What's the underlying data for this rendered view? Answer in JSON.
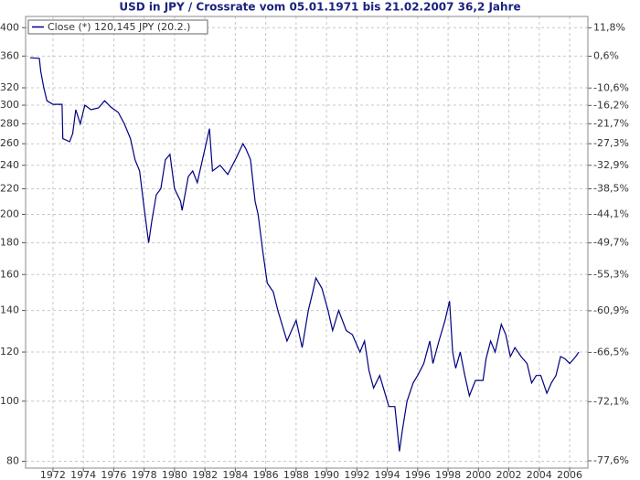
{
  "chart_data": {
    "type": "line",
    "title": "USD in JPY / Crossrate vom 05.01.1971 bis 21.02.2007 36,2 Jahre",
    "yscale": "log",
    "y2scale": "log-growth",
    "grid": true,
    "legend": "top-left",
    "xlim": [
      1970.7,
      2007.7
    ],
    "xticks": [
      {
        "value": 1972.5,
        "label": "1972"
      },
      {
        "value": 1974.5,
        "label": "1974"
      },
      {
        "value": 1976.5,
        "label": "1976"
      },
      {
        "value": 1978.5,
        "label": "1978"
      },
      {
        "value": 1980.5,
        "label": "1980"
      },
      {
        "value": 1982.5,
        "label": "1982"
      },
      {
        "value": 1984.5,
        "label": "1984"
      },
      {
        "value": 1986.5,
        "label": "1986"
      },
      {
        "value": 1988.5,
        "label": "1988"
      },
      {
        "value": 1990.5,
        "label": "1990"
      },
      {
        "value": 1992.5,
        "label": "1992"
      },
      {
        "value": 1994.5,
        "label": "1994"
      },
      {
        "value": 1996.5,
        "label": "1996"
      },
      {
        "value": 1998.5,
        "label": "1998"
      },
      {
        "value": 2000.5,
        "label": "2000"
      },
      {
        "value": 2002.5,
        "label": "2002"
      },
      {
        "value": 2004.5,
        "label": "2004"
      },
      {
        "value": 2006.5,
        "label": "2006"
      }
    ],
    "ylim": [
      78,
      417
    ],
    "yticks": [
      80,
      100,
      120,
      140,
      160,
      180,
      200,
      220,
      240,
      260,
      280,
      300,
      320,
      360,
      400
    ],
    "y2lim": [
      -78.2,
      16.6
    ],
    "y2ticks": [
      {
        "value": 11.8,
        "label": "11,8%"
      },
      {
        "value": 0.6,
        "label": "0,6%"
      },
      {
        "value": -10.6,
        "label": "-10,6%"
      },
      {
        "value": -16.2,
        "label": "-16,2%"
      },
      {
        "value": -21.7,
        "label": "-21,7%"
      },
      {
        "value": -27.3,
        "label": "-27,3%"
      },
      {
        "value": -32.9,
        "label": "-32,9%"
      },
      {
        "value": -38.5,
        "label": "-38,5%"
      },
      {
        "value": -44.1,
        "label": "-44,1%"
      },
      {
        "value": -49.7,
        "label": "-49,7%"
      },
      {
        "value": -55.3,
        "label": "-55,3%"
      },
      {
        "value": -60.9,
        "label": "-60,9%"
      },
      {
        "value": -66.5,
        "label": "-66,5%"
      },
      {
        "value": -72.1,
        "label": "-72,1%"
      },
      {
        "value": -77.6,
        "label": "-77,6%"
      }
    ],
    "x": [
      1971.0,
      1971.6,
      1971.7,
      1971.9,
      1972.1,
      1972.5,
      1973.1,
      1973.15,
      1973.6,
      1973.8,
      1974.0,
      1974.3,
      1974.6,
      1975.0,
      1975.5,
      1975.9,
      1976.3,
      1976.8,
      1977.2,
      1977.6,
      1977.9,
      1978.2,
      1978.5,
      1978.8,
      1979.0,
      1979.3,
      1979.6,
      1979.9,
      1980.2,
      1980.5,
      1980.9,
      1981.0,
      1981.4,
      1981.7,
      1982.0,
      1982.5,
      1982.8,
      1983.0,
      1983.5,
      1984.0,
      1984.5,
      1985.0,
      1985.2,
      1985.5,
      1985.8,
      1986.0,
      1986.3,
      1986.6,
      1987.0,
      1987.3,
      1987.9,
      1988.2,
      1988.5,
      1988.9,
      1989.3,
      1989.6,
      1989.8,
      1990.2,
      1990.6,
      1990.9,
      1991.3,
      1991.8,
      1992.2,
      1992.7,
      1993.0,
      1993.3,
      1993.6,
      1994.0,
      1994.4,
      1994.6,
      1995.0,
      1995.3,
      1995.5,
      1995.8,
      1996.2,
      1996.5,
      1996.9,
      1997.3,
      1997.5,
      1997.9,
      1998.3,
      1998.6,
      1998.8,
      1999.0,
      1999.3,
      1999.6,
      1999.9,
      2000.3,
      2000.8,
      2001.0,
      2001.3,
      2001.6,
      2002.0,
      2002.3,
      2002.6,
      2002.9,
      2003.3,
      2003.7,
      2004.0,
      2004.3,
      2004.6,
      2005.0,
      2005.3,
      2005.6,
      2005.9,
      2006.2,
      2006.5,
      2006.9,
      2007.1
    ],
    "series": [
      {
        "name": "Close (*) 120,145 JPY (20.2.)",
        "color": "#000080",
        "values": [
          357.7,
          357,
          340,
          320,
          305,
          301,
          301,
          265,
          262,
          270,
          295,
          280,
          300,
          295,
          297,
          305,
          298,
          292,
          280,
          265,
          245,
          235,
          205,
          180,
          195,
          215,
          220,
          245,
          250,
          220,
          210,
          203,
          230,
          235,
          225,
          255,
          275,
          235,
          240,
          232,
          245,
          260,
          255,
          245,
          210,
          200,
          175,
          155,
          150,
          140,
          125,
          130,
          135,
          122,
          140,
          150,
          158,
          152,
          140,
          130,
          140,
          130,
          128,
          120,
          125,
          112,
          105,
          110,
          102,
          98,
          98,
          83,
          90,
          100,
          107,
          110,
          115,
          125,
          115,
          125,
          135,
          145,
          120,
          113,
          120,
          110,
          102,
          108,
          108,
          117,
          125,
          120,
          133,
          128,
          118,
          122,
          118,
          115,
          107,
          110,
          110,
          103,
          107,
          110,
          118,
          117,
          115,
          118,
          120
        ]
      }
    ]
  }
}
